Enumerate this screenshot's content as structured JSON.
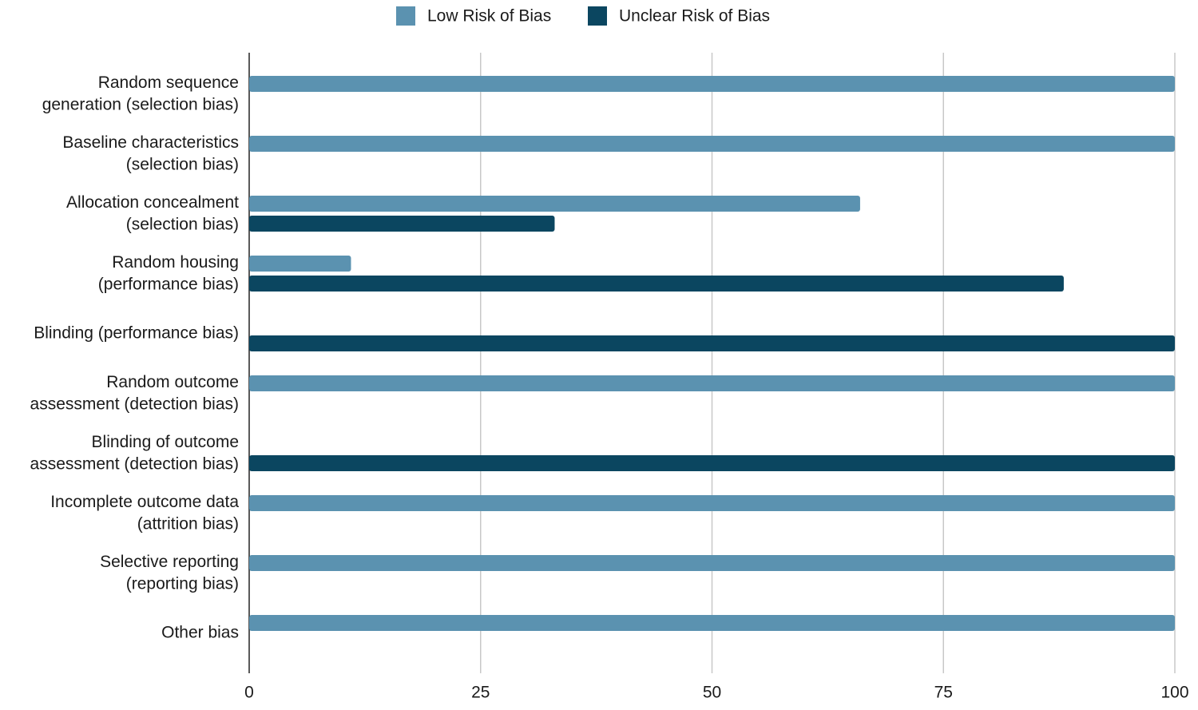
{
  "chart_data": {
    "type": "bar",
    "orientation": "horizontal",
    "categories": [
      [
        "Random sequence",
        "generation (selection bias)"
      ],
      [
        "Baseline characteristics",
        "(selection bias)"
      ],
      [
        "Allocation concealment",
        "(selection bias)"
      ],
      [
        "Random housing",
        "(performance bias)"
      ],
      [
        "Blinding (performance bias)"
      ],
      [
        "Random outcome",
        "assessment (detection bias)"
      ],
      [
        "Blinding of outcome",
        "assessment (detection bias)"
      ],
      [
        "Incomplete outcome data",
        "(attrition bias)"
      ],
      [
        "Selective reporting",
        "(reporting bias)"
      ],
      [
        "Other bias"
      ]
    ],
    "series": [
      {
        "name": "Low Risk of Bias",
        "color": "#5b92b0",
        "values": [
          100,
          100,
          66,
          11,
          null,
          100,
          null,
          100,
          100,
          100
        ]
      },
      {
        "name": "Unclear Risk of Bias",
        "color": "#0b4660",
        "values": [
          null,
          null,
          33,
          88,
          100,
          null,
          100,
          null,
          null,
          null
        ]
      }
    ],
    "xlim": [
      0,
      100
    ],
    "xticks": [
      0,
      25,
      50,
      75,
      100
    ],
    "grid": true
  }
}
